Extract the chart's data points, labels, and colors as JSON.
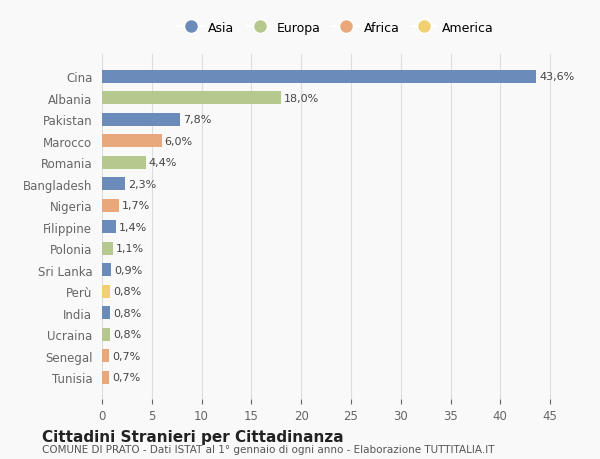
{
  "countries": [
    "Cina",
    "Albania",
    "Pakistan",
    "Marocco",
    "Romania",
    "Bangladesh",
    "Nigeria",
    "Filippine",
    "Polonia",
    "Sri Lanka",
    "Perù",
    "India",
    "Ucraina",
    "Senegal",
    "Tunisia"
  ],
  "values": [
    43.6,
    18.0,
    7.8,
    6.0,
    4.4,
    2.3,
    1.7,
    1.4,
    1.1,
    0.9,
    0.8,
    0.8,
    0.8,
    0.7,
    0.7
  ],
  "labels": [
    "43,6%",
    "18,0%",
    "7,8%",
    "6,0%",
    "4,4%",
    "2,3%",
    "1,7%",
    "1,4%",
    "1,1%",
    "0,9%",
    "0,8%",
    "0,8%",
    "0,8%",
    "0,7%",
    "0,7%"
  ],
  "continents": [
    "Asia",
    "Europa",
    "Asia",
    "Africa",
    "Europa",
    "Asia",
    "Africa",
    "Asia",
    "Europa",
    "Asia",
    "America",
    "Asia",
    "Europa",
    "Africa",
    "Africa"
  ],
  "colors": {
    "Asia": "#6b8cba",
    "Europa": "#b5c98e",
    "Africa": "#e8a87c",
    "America": "#f0d070"
  },
  "legend_entries": [
    "Asia",
    "Europa",
    "Africa",
    "America"
  ],
  "title": "Cittadini Stranieri per Cittadinanza",
  "subtitle": "COMUNE DI PRATO - Dati ISTAT al 1° gennaio di ogni anno - Elaborazione TUTTITALIA.IT",
  "xlim": [
    0,
    47
  ],
  "xticks": [
    0,
    5,
    10,
    15,
    20,
    25,
    30,
    35,
    40,
    45
  ],
  "bg_color": "#f9f9f9",
  "grid_color": "#dddddd"
}
